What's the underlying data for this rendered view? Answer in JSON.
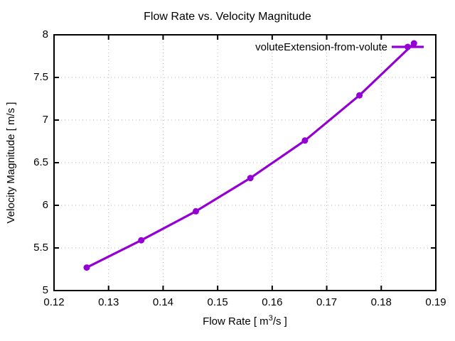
{
  "window": {
    "background": "#ffffff"
  },
  "chart_data": {
    "type": "line",
    "title": "Flow Rate vs. Velocity Magnitude",
    "xlabel": "Flow Rate [ m³/s ]",
    "xlabel_parts": {
      "pre": "Flow Rate [ m",
      "sup": "3",
      "post": "/s ]"
    },
    "ylabel": "Velocity Magnitude [ m/s ]",
    "xlim": [
      0.12,
      0.19
    ],
    "ylim": [
      5,
      8
    ],
    "xticks": {
      "values": [
        0.12,
        0.13,
        0.14,
        0.15,
        0.16,
        0.17,
        0.18,
        0.19
      ],
      "labels": [
        "0.12",
        "0.13",
        "0.14",
        "0.15",
        "0.16",
        "0.17",
        "0.18",
        "0.19"
      ]
    },
    "yticks": {
      "values": [
        5,
        5.5,
        6,
        6.5,
        7,
        7.5,
        8
      ],
      "labels": [
        "5",
        "5.5",
        "6",
        "6.5",
        "7",
        "7.5",
        "8"
      ]
    },
    "grid": "dotted",
    "grid_color": "#b8b8b8",
    "axis_color": "#000000",
    "legend": {
      "position": "top-right-inside",
      "label": "voluteExtension-from-volute"
    },
    "series": [
      {
        "name": "voluteExtension-from-volute",
        "color": "#9400d3",
        "marker": "filled-circle",
        "x": [
          0.126,
          0.136,
          0.146,
          0.156,
          0.166,
          0.176,
          0.186
        ],
        "y": [
          5.27,
          5.59,
          5.93,
          6.32,
          6.76,
          7.29,
          7.9
        ]
      }
    ]
  }
}
